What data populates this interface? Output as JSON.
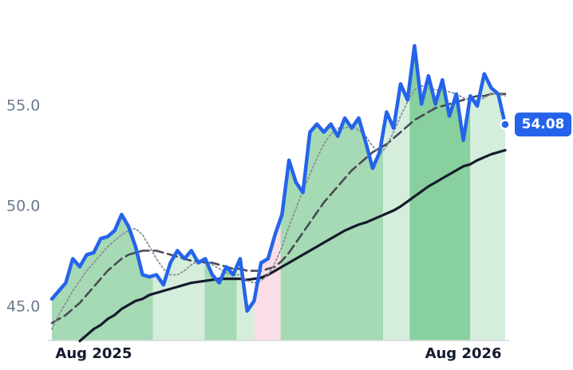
{
  "chart_data": {
    "type": "line",
    "x": [
      0,
      1,
      2,
      3,
      4,
      5,
      6,
      7,
      8,
      9,
      10,
      11,
      12,
      13,
      14,
      15,
      16,
      17,
      18,
      19,
      20,
      21,
      22,
      23,
      24,
      25,
      26,
      27,
      28,
      29,
      30,
      31,
      32,
      33,
      34,
      35,
      36,
      37,
      38,
      39,
      40,
      41,
      42,
      43,
      44,
      45,
      46,
      47,
      48,
      49,
      50,
      51,
      52,
      53,
      54,
      55,
      56,
      57,
      58,
      59,
      60,
      61,
      62,
      63,
      64,
      65
    ],
    "series": [
      {
        "color": "#2563eb",
        "dash": "solid",
        "width": 4.5,
        "values": [
          45.4,
          45.8,
          46.2,
          47.4,
          47.0,
          47.6,
          47.7,
          48.4,
          48.5,
          48.8,
          49.6,
          49.0,
          48.0,
          46.6,
          46.5,
          46.6,
          46.1,
          47.2,
          47.8,
          47.4,
          47.8,
          47.2,
          47.4,
          46.6,
          46.2,
          47.0,
          46.6,
          47.4,
          44.8,
          45.3,
          47.2,
          47.4,
          48.6,
          49.6,
          52.3,
          51.2,
          50.7,
          53.7,
          54.1,
          53.7,
          54.1,
          53.5,
          54.4,
          53.9,
          54.4,
          53.2,
          51.9,
          52.7,
          54.7,
          53.9,
          56.1,
          55.3,
          58.0,
          55.1,
          56.5,
          55.1,
          56.3,
          54.5,
          55.6,
          53.3,
          55.5,
          55.0,
          56.6,
          55.9,
          55.6,
          54.08
        ]
      },
      {
        "color": "#8a8f99",
        "dash": "dotted",
        "width": 1.8,
        "values": [
          43.9,
          44.6,
          45.2,
          45.8,
          46.3,
          46.8,
          47.2,
          47.6,
          48.0,
          48.3,
          48.6,
          48.8,
          48.9,
          48.6,
          48.0,
          47.4,
          46.9,
          46.6,
          46.6,
          46.8,
          47.1,
          47.3,
          47.3,
          47.1,
          46.9,
          46.7,
          46.6,
          46.6,
          46.3,
          46.2,
          46.3,
          46.6,
          47.2,
          48.0,
          49.0,
          49.9,
          50.8,
          51.6,
          52.4,
          53.1,
          53.6,
          53.9,
          53.9,
          54.0,
          53.8,
          53.5,
          53.0,
          52.6,
          53.0,
          53.7,
          54.5,
          55.2,
          55.8,
          56.0,
          55.9,
          55.8,
          55.8,
          55.7,
          55.6,
          55.4,
          55.3,
          55.3,
          55.4,
          55.6,
          55.6,
          55.5
        ]
      },
      {
        "color": "#474b55",
        "dash": "dashed",
        "width": 2.6,
        "values": [
          44.2,
          44.4,
          44.6,
          44.9,
          45.2,
          45.6,
          46.0,
          46.4,
          46.8,
          47.1,
          47.4,
          47.6,
          47.7,
          47.8,
          47.8,
          47.8,
          47.7,
          47.6,
          47.5,
          47.4,
          47.3,
          47.3,
          47.2,
          47.2,
          47.1,
          47.0,
          46.9,
          46.9,
          46.8,
          46.8,
          46.8,
          46.9,
          47.0,
          47.3,
          47.7,
          48.2,
          48.7,
          49.2,
          49.7,
          50.2,
          50.6,
          51.0,
          51.4,
          51.8,
          52.1,
          52.4,
          52.7,
          52.9,
          53.1,
          53.4,
          53.7,
          54.0,
          54.3,
          54.5,
          54.7,
          54.9,
          55.0,
          55.1,
          55.2,
          55.3,
          55.4,
          55.5,
          55.5,
          55.6,
          55.6,
          55.6
        ]
      },
      {
        "color": "#161b2e",
        "dash": "solid",
        "width": 3.2,
        "values": [
          null,
          null,
          null,
          null,
          43.3,
          43.6,
          43.9,
          44.1,
          44.4,
          44.6,
          44.9,
          45.1,
          45.3,
          45.4,
          45.6,
          45.7,
          45.8,
          45.9,
          46.0,
          46.1,
          46.2,
          46.25,
          46.3,
          46.35,
          46.4,
          46.4,
          46.4,
          46.4,
          46.35,
          46.4,
          46.45,
          46.6,
          46.8,
          47.0,
          47.2,
          47.4,
          47.6,
          47.8,
          48.0,
          48.2,
          48.4,
          48.6,
          48.8,
          48.95,
          49.1,
          49.2,
          49.35,
          49.5,
          49.65,
          49.8,
          50.0,
          50.25,
          50.5,
          50.75,
          51.0,
          51.2,
          51.4,
          51.6,
          51.8,
          52.0,
          52.1,
          52.3,
          52.45,
          52.6,
          52.7,
          52.8
        ]
      }
    ],
    "regions": [
      {
        "start": 0,
        "end": 14.5,
        "color": "#a6dab4"
      },
      {
        "start": 14.5,
        "end": 21.9,
        "color": "#d5eedc"
      },
      {
        "start": 21.9,
        "end": 26.5,
        "color": "#a6dab4"
      },
      {
        "start": 26.5,
        "end": 29,
        "color": "#d5eedc"
      },
      {
        "start": 29,
        "end": 32.8,
        "color": "#fbdde6"
      },
      {
        "start": 32.8,
        "end": 47.5,
        "color": "#a6dab4"
      },
      {
        "start": 47.5,
        "end": 51.3,
        "color": "#d5eedc"
      },
      {
        "start": 51.3,
        "end": 60,
        "color": "#88d09e"
      },
      {
        "start": 60,
        "end": 65,
        "color": "#d5eedc"
      }
    ],
    "xlim": [
      0,
      65
    ],
    "xticks": [
      {
        "value": 6,
        "label": "Aug 2025"
      },
      {
        "value": 59,
        "label": "Aug 2026"
      }
    ],
    "ylim": [
      43.33,
      59.88
    ],
    "yticks": [
      {
        "value": 45,
        "label": "45.0"
      },
      {
        "value": 50,
        "label": "50.0"
      },
      {
        "value": 55,
        "label": "55.0"
      }
    ]
  }
}
